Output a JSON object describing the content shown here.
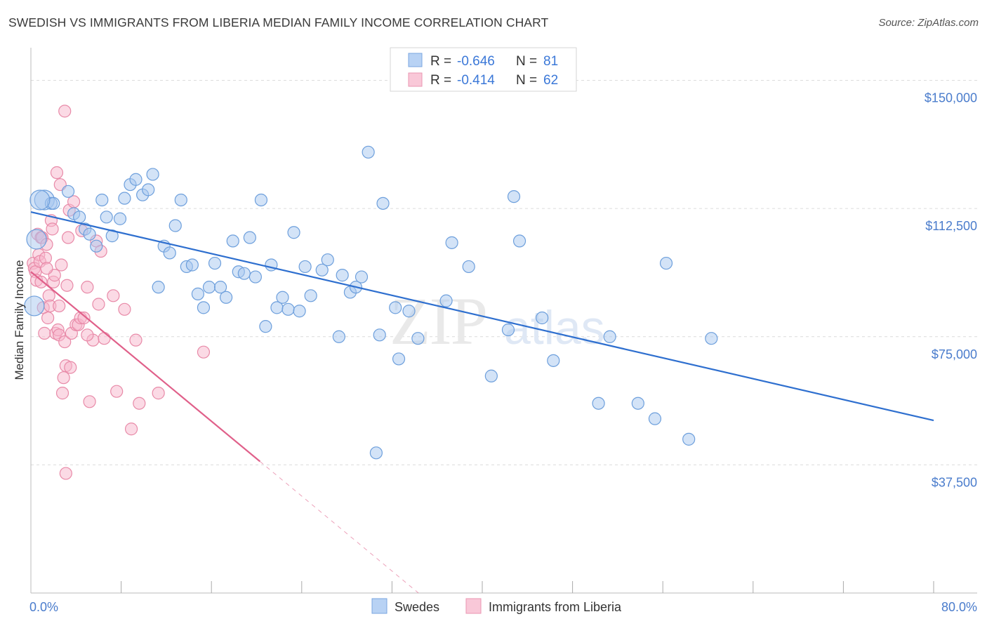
{
  "chart_data": {
    "type": "scatter",
    "title": "SWEDISH VS IMMIGRANTS FROM LIBERIA MEDIAN FAMILY INCOME CORRELATION CHART",
    "source": "Source: ZipAtlas.com",
    "xlabel": "",
    "ylabel": "Median Family Income",
    "xlim": [
      0,
      80
    ],
    "ylim": [
      0,
      157500
    ],
    "x_tick_labels": [
      "0.0%",
      "80.0%"
    ],
    "y_ticks": [
      37500,
      75000,
      112500,
      150000
    ],
    "y_tick_labels": [
      "$37,500",
      "$75,000",
      "$112,500",
      "$150,000"
    ],
    "watermark": "ZIPatlas",
    "legend": {
      "rows": [
        {
          "r_label": "R =",
          "r_value": "-0.646",
          "n_label": "N =",
          "n_value": "81"
        },
        {
          "r_label": "R =",
          "r_value": "-0.414",
          "n_label": "N =",
          "n_value": "62"
        }
      ]
    },
    "series": [
      {
        "name": "Swedes",
        "color": "#a8c8f0",
        "stroke": "#6d9fdc",
        "line_color": "#2e6fcf",
        "trend": {
          "x0": 0,
          "y0": 111500,
          "x1": 80,
          "y1": 50500
        },
        "points": [
          [
            0.3,
            84000
          ],
          [
            0.5,
            103500
          ],
          [
            1.2,
            115000
          ],
          [
            1.8,
            114000
          ],
          [
            2.0,
            114000
          ],
          [
            3.3,
            117500
          ],
          [
            3.8,
            111000
          ],
          [
            4.3,
            110000
          ],
          [
            4.8,
            106500
          ],
          [
            5.2,
            105000
          ],
          [
            5.8,
            101500
          ],
          [
            6.3,
            115000
          ],
          [
            6.7,
            110000
          ],
          [
            7.2,
            104500
          ],
          [
            7.9,
            109500
          ],
          [
            8.3,
            115500
          ],
          [
            8.8,
            119500
          ],
          [
            9.3,
            121000
          ],
          [
            9.9,
            116500
          ],
          [
            10.4,
            118000
          ],
          [
            10.8,
            122500
          ],
          [
            11.3,
            89500
          ],
          [
            11.8,
            101500
          ],
          [
            12.3,
            99500
          ],
          [
            12.8,
            107500
          ],
          [
            13.3,
            115000
          ],
          [
            13.8,
            95500
          ],
          [
            14.3,
            96000
          ],
          [
            14.8,
            87500
          ],
          [
            15.3,
            83500
          ],
          [
            15.8,
            89500
          ],
          [
            16.3,
            96500
          ],
          [
            16.8,
            89500
          ],
          [
            17.3,
            86500
          ],
          [
            17.9,
            103000
          ],
          [
            18.4,
            94000
          ],
          [
            18.9,
            93500
          ],
          [
            19.4,
            104000
          ],
          [
            19.9,
            92500
          ],
          [
            20.4,
            115000
          ],
          [
            20.8,
            78000
          ],
          [
            21.3,
            96000
          ],
          [
            21.8,
            83500
          ],
          [
            22.3,
            86500
          ],
          [
            22.8,
            83000
          ],
          [
            23.3,
            105500
          ],
          [
            23.8,
            82500
          ],
          [
            24.3,
            95500
          ],
          [
            24.8,
            87000
          ],
          [
            25.8,
            94500
          ],
          [
            26.3,
            97500
          ],
          [
            27.3,
            75000
          ],
          [
            27.6,
            93000
          ],
          [
            28.3,
            88000
          ],
          [
            28.8,
            89500
          ],
          [
            29.3,
            92500
          ],
          [
            29.9,
            129000
          ],
          [
            30.6,
            41000
          ],
          [
            30.9,
            75500
          ],
          [
            31.2,
            114000
          ],
          [
            32.3,
            83500
          ],
          [
            32.6,
            68500
          ],
          [
            33.5,
            82500
          ],
          [
            34.3,
            74500
          ],
          [
            36.8,
            85500
          ],
          [
            37.3,
            102500
          ],
          [
            38.8,
            95500
          ],
          [
            40.8,
            63500
          ],
          [
            42.3,
            77000
          ],
          [
            42.8,
            116000
          ],
          [
            43.3,
            103000
          ],
          [
            45.3,
            80500
          ],
          [
            46.3,
            68000
          ],
          [
            50.3,
            55500
          ],
          [
            51.3,
            75000
          ],
          [
            53.8,
            55500
          ],
          [
            55.3,
            51000
          ],
          [
            56.3,
            96500
          ],
          [
            58.3,
            45000
          ],
          [
            60.3,
            74500
          ],
          [
            0.8,
            115000
          ]
        ]
      },
      {
        "name": "Immigrants from Liberia",
        "color": "#f7b6cb",
        "stroke": "#e88aa8",
        "line_color": "#e0608a",
        "trend": {
          "x0": 0,
          "y0": 94000,
          "x1": 20.3,
          "y1": 38500
        },
        "trend_dash": {
          "x0": 20.3,
          "y0": 38500,
          "x1": 40,
          "y1": -15500
        },
        "points": [
          [
            0.2,
            96500
          ],
          [
            0.3,
            95000
          ],
          [
            0.4,
            94000
          ],
          [
            0.5,
            91500
          ],
          [
            0.6,
            105000
          ],
          [
            0.7,
            99000
          ],
          [
            0.8,
            97000
          ],
          [
            0.9,
            104000
          ],
          [
            1.0,
            104000
          ],
          [
            1.1,
            83500
          ],
          [
            1.2,
            76000
          ],
          [
            1.3,
            98000
          ],
          [
            1.4,
            102000
          ],
          [
            1.5,
            80500
          ],
          [
            1.6,
            87000
          ],
          [
            1.7,
            84000
          ],
          [
            1.8,
            109000
          ],
          [
            1.9,
            106500
          ],
          [
            2.0,
            91000
          ],
          [
            2.1,
            93000
          ],
          [
            2.2,
            76000
          ],
          [
            2.3,
            123000
          ],
          [
            2.4,
            77000
          ],
          [
            2.5,
            75500
          ],
          [
            2.6,
            119500
          ],
          [
            2.7,
            96000
          ],
          [
            2.8,
            58500
          ],
          [
            2.9,
            63000
          ],
          [
            3.0,
            73500
          ],
          [
            3.1,
            66500
          ],
          [
            3.2,
            90000
          ],
          [
            3.3,
            104000
          ],
          [
            3.4,
            112000
          ],
          [
            3.5,
            66000
          ],
          [
            3.6,
            76000
          ],
          [
            3.8,
            114500
          ],
          [
            4.0,
            78500
          ],
          [
            4.2,
            78500
          ],
          [
            4.4,
            80500
          ],
          [
            4.5,
            106000
          ],
          [
            4.7,
            80500
          ],
          [
            5.0,
            89500
          ],
          [
            5.2,
            56000
          ],
          [
            5.5,
            74000
          ],
          [
            5.8,
            103000
          ],
          [
            6.0,
            84500
          ],
          [
            6.2,
            100000
          ],
          [
            6.5,
            74500
          ],
          [
            7.3,
            87000
          ],
          [
            7.6,
            59000
          ],
          [
            8.3,
            83000
          ],
          [
            8.9,
            48000
          ],
          [
            9.3,
            74000
          ],
          [
            9.6,
            55500
          ],
          [
            11.3,
            58500
          ],
          [
            15.3,
            70500
          ],
          [
            3.0,
            141000
          ],
          [
            3.1,
            35000
          ],
          [
            0.9,
            91000
          ],
          [
            1.4,
            95000
          ],
          [
            2.5,
            84000
          ],
          [
            5.0,
            75500
          ]
        ]
      }
    ]
  }
}
